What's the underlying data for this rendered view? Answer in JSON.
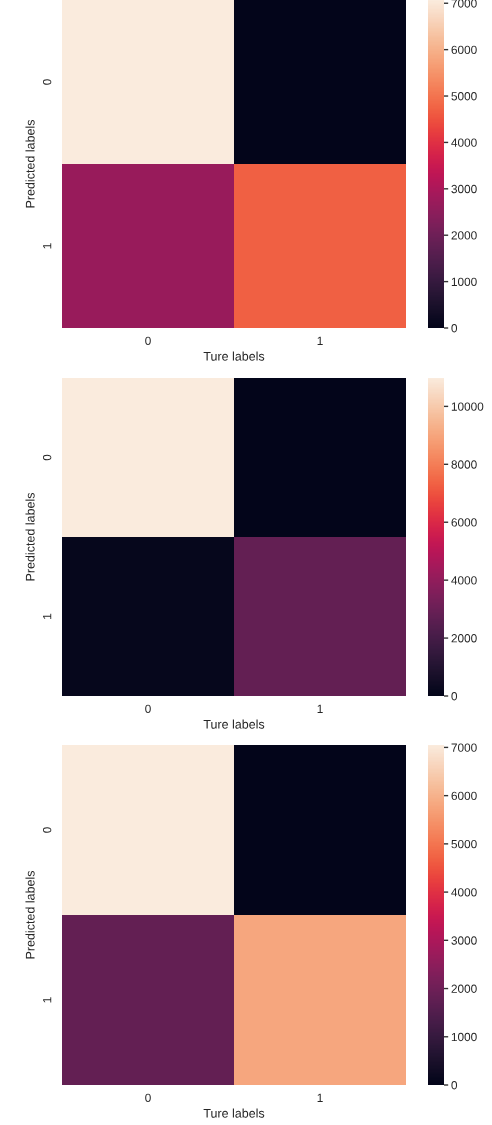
{
  "chart_data": [
    {
      "type": "heatmap",
      "xlabel": "Ture labels",
      "ylabel": "Predicted labels",
      "categories": [
        "0",
        "1"
      ],
      "y_categories": [
        "0",
        "1"
      ],
      "cells": [
        [
          7070,
          0
        ],
        [
          2700,
          4700
        ]
      ],
      "clim": [
        0,
        7070
      ],
      "cticks": [
        0,
        1000,
        2000,
        3000,
        4000,
        5000,
        6000,
        7000
      ]
    },
    {
      "type": "heatmap",
      "xlabel": "Ture labels",
      "ylabel": "Predicted labels",
      "categories": [
        "0",
        "1"
      ],
      "y_categories": [
        "0",
        "1"
      ],
      "cells": [
        [
          10980,
          0
        ],
        [
          150,
          2800
        ]
      ],
      "clim": [
        0,
        10980
      ],
      "cticks": [
        0,
        2000,
        4000,
        6000,
        8000,
        10000
      ]
    },
    {
      "type": "heatmap",
      "xlabel": "Ture labels",
      "ylabel": "Predicted labels",
      "categories": [
        "0",
        "1"
      ],
      "y_categories": [
        "0",
        "1"
      ],
      "cells": [
        [
          7050,
          0
        ],
        [
          1800,
          5800
        ]
      ],
      "clim": [
        0,
        7050
      ],
      "cticks": [
        0,
        1000,
        2000,
        3000,
        4000,
        5000,
        6000,
        7000
      ]
    }
  ]
}
